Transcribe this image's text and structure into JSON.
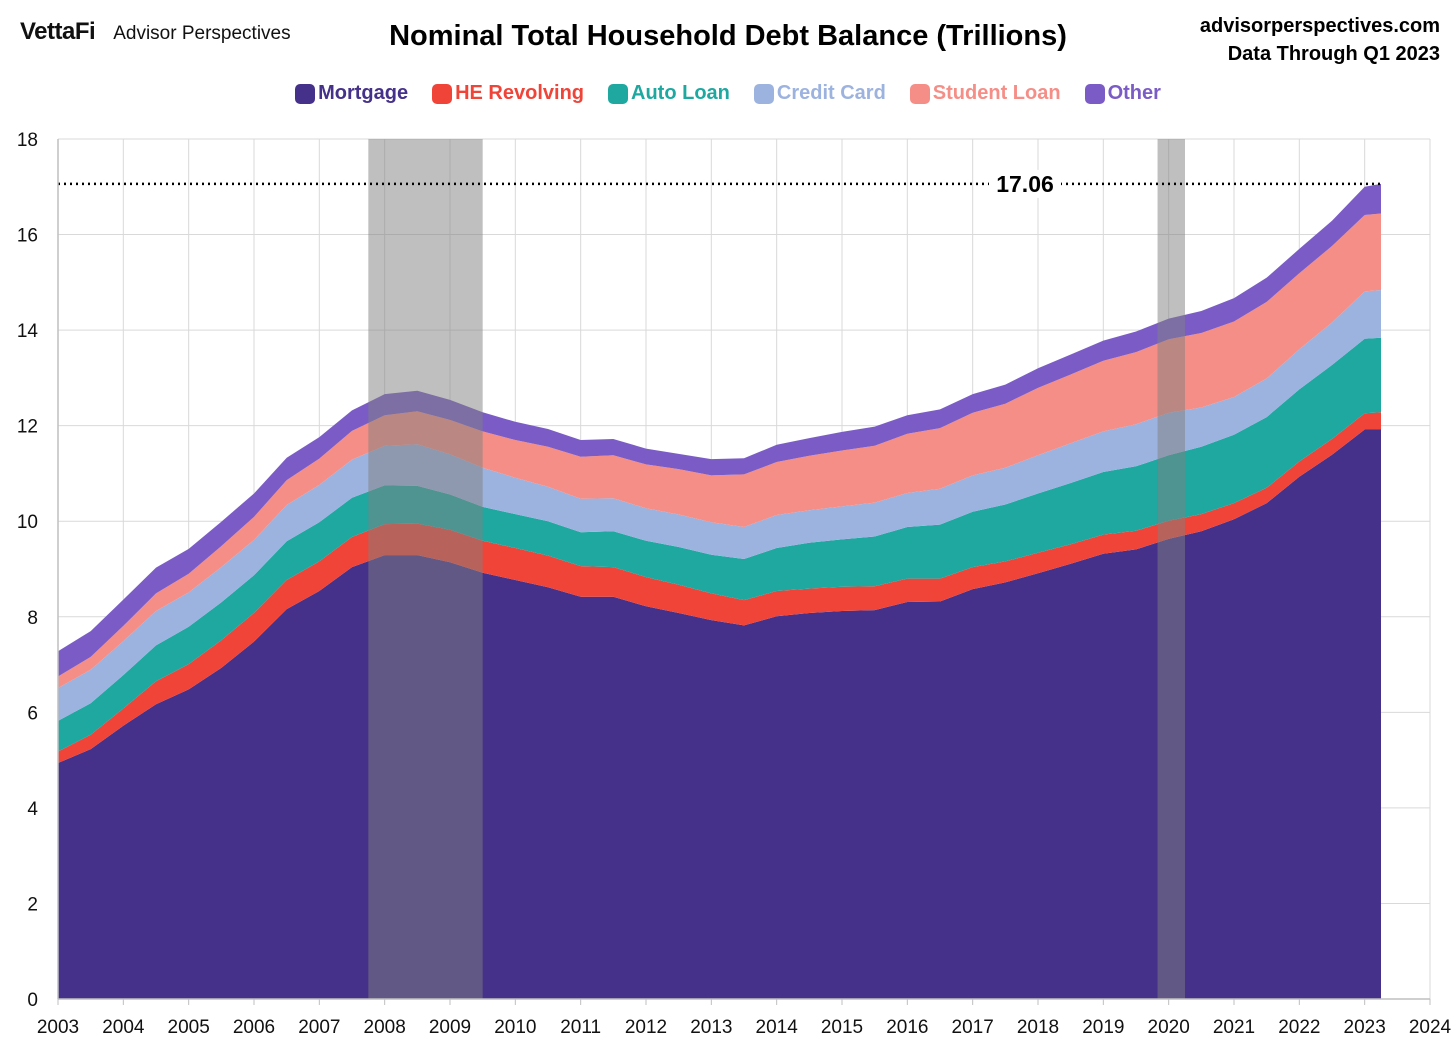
{
  "header": {
    "brand": "VettaFi",
    "brand_sub": "Advisor Perspectives",
    "source_site": "advisorperspectives.com",
    "data_through": "Data Through Q1 2023"
  },
  "chart_data": {
    "type": "area",
    "stacked": true,
    "title": "Nominal Total Household Debt Balance (Trillions)",
    "xlabel": "",
    "ylabel": "",
    "xlim": [
      2003,
      2024
    ],
    "ylim": [
      0,
      18
    ],
    "x_ticks": [
      "2003",
      "2004",
      "2005",
      "2006",
      "2007",
      "2008",
      "2009",
      "2010",
      "2011",
      "2012",
      "2013",
      "2014",
      "2015",
      "2016",
      "2017",
      "2018",
      "2019",
      "2020",
      "2021",
      "2022",
      "2023",
      "2024"
    ],
    "y_ticks": [
      "0",
      "2",
      "4",
      "6",
      "8",
      "10",
      "12",
      "14",
      "16",
      "18"
    ],
    "grid": true,
    "legend_position": "top-center",
    "recessions": [
      [
        2007.75,
        2009.5
      ],
      [
        2019.83,
        2020.25
      ]
    ],
    "reference_line": {
      "value": 17.06,
      "label": "17.06",
      "style": "dotted"
    },
    "x": [
      2003.0,
      2003.5,
      2004.0,
      2004.5,
      2005.0,
      2005.5,
      2006.0,
      2006.5,
      2007.0,
      2007.5,
      2008.0,
      2008.5,
      2009.0,
      2009.5,
      2010.0,
      2010.5,
      2011.0,
      2011.5,
      2012.0,
      2012.5,
      2013.0,
      2013.5,
      2014.0,
      2014.5,
      2015.0,
      2015.5,
      2016.0,
      2016.5,
      2017.0,
      2017.5,
      2018.0,
      2018.5,
      2019.0,
      2019.5,
      2020.0,
      2020.5,
      2021.0,
      2021.5,
      2022.0,
      2022.5,
      2023.0,
      2023.25
    ],
    "series": [
      {
        "name": "Mortgage",
        "color": "#45318a",
        "values": [
          4.94,
          5.23,
          5.72,
          6.17,
          6.48,
          6.93,
          7.48,
          8.16,
          8.54,
          9.04,
          9.29,
          9.29,
          9.14,
          8.92,
          8.77,
          8.62,
          8.42,
          8.42,
          8.22,
          8.08,
          7.93,
          7.82,
          8.01,
          8.08,
          8.12,
          8.14,
          8.31,
          8.32,
          8.58,
          8.72,
          8.91,
          9.11,
          9.32,
          9.41,
          9.63,
          9.79,
          10.04,
          10.38,
          10.93,
          11.39,
          11.92,
          11.92
        ]
      },
      {
        "name": "HE Revolving",
        "color": "#f04438",
        "values": [
          0.24,
          0.3,
          0.36,
          0.48,
          0.53,
          0.58,
          0.6,
          0.61,
          0.62,
          0.63,
          0.65,
          0.66,
          0.68,
          0.67,
          0.67,
          0.66,
          0.64,
          0.62,
          0.61,
          0.59,
          0.56,
          0.53,
          0.53,
          0.51,
          0.51,
          0.5,
          0.49,
          0.48,
          0.46,
          0.44,
          0.43,
          0.41,
          0.4,
          0.39,
          0.38,
          0.36,
          0.34,
          0.32,
          0.32,
          0.33,
          0.34,
          0.36
        ]
      },
      {
        "name": "Auto Loan",
        "color": "#1ea8a0",
        "values": [
          0.64,
          0.66,
          0.7,
          0.75,
          0.78,
          0.79,
          0.79,
          0.81,
          0.82,
          0.82,
          0.81,
          0.79,
          0.74,
          0.71,
          0.71,
          0.72,
          0.71,
          0.75,
          0.76,
          0.79,
          0.81,
          0.86,
          0.9,
          0.96,
          0.99,
          1.04,
          1.08,
          1.13,
          1.16,
          1.19,
          1.24,
          1.28,
          1.31,
          1.35,
          1.37,
          1.41,
          1.43,
          1.48,
          1.51,
          1.55,
          1.56,
          1.56
        ]
      },
      {
        "name": "Credit Card",
        "color": "#9db3df",
        "values": [
          0.69,
          0.7,
          0.71,
          0.72,
          0.72,
          0.74,
          0.74,
          0.76,
          0.78,
          0.8,
          0.83,
          0.87,
          0.84,
          0.82,
          0.76,
          0.72,
          0.7,
          0.69,
          0.68,
          0.68,
          0.68,
          0.67,
          0.69,
          0.68,
          0.69,
          0.71,
          0.71,
          0.75,
          0.76,
          0.77,
          0.8,
          0.83,
          0.85,
          0.88,
          0.89,
          0.82,
          0.79,
          0.81,
          0.84,
          0.89,
          0.99,
          1.0
        ]
      },
      {
        "name": "Student Loan",
        "color": "#f58e87",
        "values": [
          0.24,
          0.27,
          0.32,
          0.37,
          0.39,
          0.44,
          0.48,
          0.52,
          0.55,
          0.6,
          0.64,
          0.69,
          0.72,
          0.76,
          0.79,
          0.84,
          0.88,
          0.9,
          0.92,
          0.95,
          0.98,
          1.1,
          1.11,
          1.14,
          1.17,
          1.19,
          1.24,
          1.27,
          1.31,
          1.34,
          1.41,
          1.44,
          1.48,
          1.51,
          1.54,
          1.56,
          1.58,
          1.6,
          1.59,
          1.6,
          1.6,
          1.6
        ]
      },
      {
        "name": "Other",
        "color": "#7b5cc7",
        "values": [
          0.53,
          0.54,
          0.55,
          0.54,
          0.52,
          0.51,
          0.49,
          0.47,
          0.45,
          0.43,
          0.44,
          0.43,
          0.42,
          0.4,
          0.38,
          0.37,
          0.35,
          0.34,
          0.33,
          0.32,
          0.34,
          0.34,
          0.36,
          0.37,
          0.39,
          0.4,
          0.39,
          0.39,
          0.39,
          0.4,
          0.41,
          0.42,
          0.42,
          0.43,
          0.43,
          0.46,
          0.49,
          0.51,
          0.51,
          0.53,
          0.59,
          0.62
        ]
      }
    ]
  }
}
